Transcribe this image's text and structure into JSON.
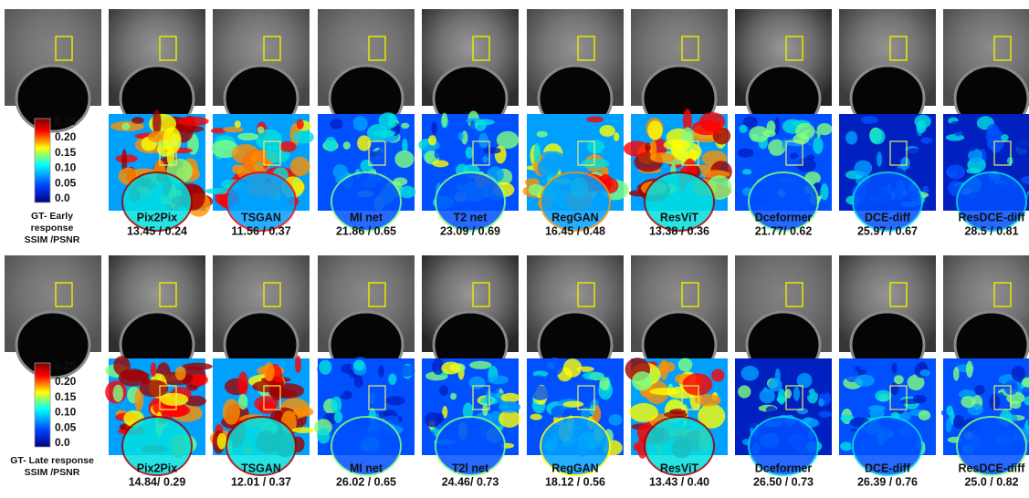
{
  "blocks": [
    {
      "caption": [
        "GT- Early",
        "response",
        "SSIM /PSNR"
      ],
      "colorbar_ticks": [
        "0.25",
        "0.20",
        "0.15",
        "0.10",
        "0.05",
        "0.0"
      ],
      "methods": [
        {
          "name": "Pix2Pix",
          "score": "13.45 / 0.24"
        },
        {
          "name": "TSGAN",
          "score": "11.56 / 0.37"
        },
        {
          "name": "MI net",
          "score": "21.86 / 0.65"
        },
        {
          "name": "T2 net",
          "score": "23.09 / 0.69"
        },
        {
          "name": "RegGAN",
          "score": "16.45 / 0.48"
        },
        {
          "name": "ResViT",
          "score": "13.38 / 0.36"
        },
        {
          "name": "Dceformer",
          "score": "21.77/ 0.62"
        },
        {
          "name": "DCE-diff",
          "score": "25.97 / 0.67"
        },
        {
          "name": "ResDCE-diff",
          "score": "28.5 / 0.81"
        }
      ]
    },
    {
      "caption": [
        "GT- Late response",
        "SSIM /PSNR"
      ],
      "colorbar_ticks": [
        "0.25",
        "0.20",
        "0.15",
        "0.10",
        "0.05",
        "0.0"
      ],
      "methods": [
        {
          "name": "Pix2Pix",
          "score": "14.84/ 0.29"
        },
        {
          "name": "TSGAN",
          "score": "12.01 / 0.37"
        },
        {
          "name": "MI net",
          "score": "26.02 / 0.65"
        },
        {
          "name": "T2l net",
          "score": "24.46/ 0.73"
        },
        {
          "name": "RegGAN",
          "score": "18.12 / 0.56"
        },
        {
          "name": "ResViT",
          "score": "13.43 / 0.40"
        },
        {
          "name": "Dceformer",
          "score": "26.50 / 0.73"
        },
        {
          "name": "DCE-diff",
          "score": "26.39 / 0.76"
        },
        {
          "name": "ResDCE-diff",
          "score": "25.0 / 0.82"
        }
      ]
    }
  ]
}
